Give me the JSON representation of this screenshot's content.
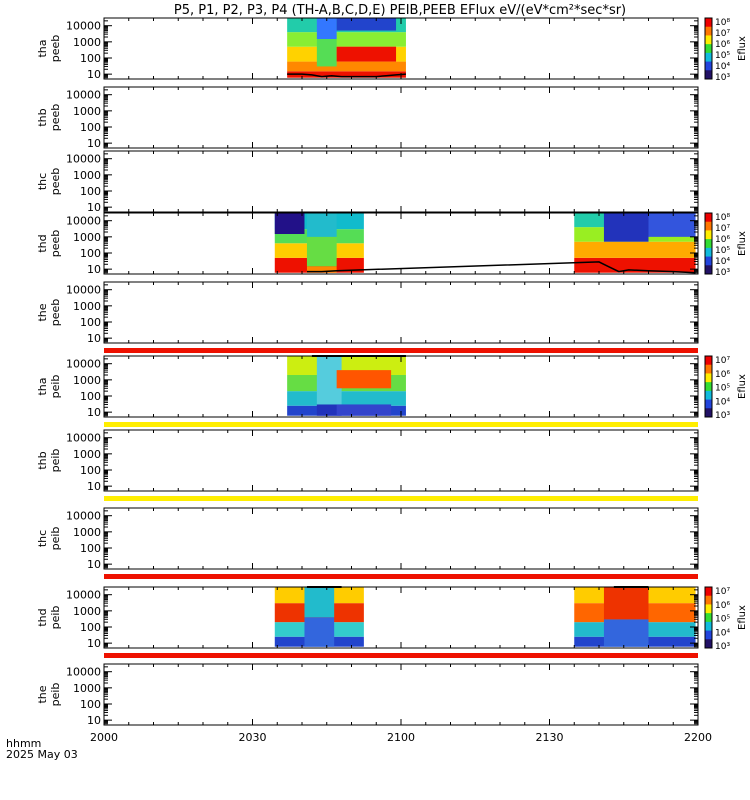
{
  "page_title": "P5, P1, P2, P3, P4 (TH-A,B,C,D,E) PEIB,PEEB EFlux eV/(eV*cm²*sec*sr)",
  "footer": {
    "line1": "hhmm",
    "line2": "2025 May 03"
  },
  "chart_data": {
    "type": "heatmap",
    "title": "P5, P1, P2, P3, P4 (TH-A,B,C,D,E) PEIB,PEEB EFlux eV/(eV*cm²*sec*sr)",
    "x_tick_labels": [
      "2000",
      "2030",
      "2100",
      "2130",
      "2200"
    ],
    "x_tick_minutes": [
      0,
      30,
      60,
      90,
      120
    ],
    "x_range_minutes": [
      0,
      120
    ],
    "y_scale": "log",
    "y_tick_labels": [
      "10",
      "100",
      "1000",
      "10000"
    ],
    "y_tick_values": [
      10,
      100,
      1000,
      10000
    ],
    "y_range": [
      5,
      30000
    ],
    "colorbar_label": "Eflux",
    "panels": [
      {
        "label_top": "tha",
        "label_bottom": "peeb",
        "colorbar_ticks": [
          "10⁸",
          "10⁷",
          "10⁶",
          "10⁵",
          "10⁴",
          "10³"
        ],
        "segments": [
          {
            "start": 37,
            "end": 61,
            "bands": [
              {
                "from": 6,
                "to": 15,
                "color": "#ee1100"
              },
              {
                "from": 15,
                "to": 60,
                "color": "#ff8800"
              },
              {
                "from": 60,
                "to": 500,
                "color": "#ffd200"
              },
              {
                "from": 500,
                "to": 4000,
                "color": "#88ee33"
              },
              {
                "from": 4000,
                "to": 30000,
                "color": "#22ccaa"
              }
            ]
          },
          {
            "start": 43,
            "end": 47,
            "bands": [
              {
                "from": 30,
                "to": 1500,
                "color": "#55dd55"
              },
              {
                "from": 1500,
                "to": 30000,
                "color": "#3377ff"
              }
            ]
          },
          {
            "start": 47,
            "end": 59,
            "bands": [
              {
                "from": 60,
                "to": 500,
                "color": "#ee1100"
              },
              {
                "from": 5000,
                "to": 30000,
                "color": "#2244cc"
              }
            ]
          }
        ],
        "line": [
          [
            37,
            10
          ],
          [
            40,
            10
          ],
          [
            42,
            9
          ],
          [
            44,
            7
          ],
          [
            46,
            8
          ],
          [
            48,
            7
          ],
          [
            50,
            7
          ],
          [
            52,
            7
          ],
          [
            55,
            7
          ],
          [
            57,
            8
          ],
          [
            59,
            9
          ],
          [
            61,
            10
          ]
        ]
      },
      {
        "label_top": "thb",
        "label_bottom": "peeb"
      },
      {
        "label_top": "thc",
        "label_bottom": "peeb"
      },
      {
        "label_top": "thd",
        "label_bottom": "peeb",
        "colorbar_ticks": [
          "10⁸",
          "10⁷",
          "10⁶",
          "10⁵",
          "10⁴",
          "10³"
        ],
        "segments": [
          {
            "start": 34.5,
            "end": 52.5,
            "bands": [
              {
                "from": 6,
                "to": 50,
                "color": "#ee1100"
              },
              {
                "from": 50,
                "to": 400,
                "color": "#ffcc00"
              },
              {
                "from": 400,
                "to": 3000,
                "color": "#55dd55"
              },
              {
                "from": 3000,
                "to": 30000,
                "color": "#11bbcc"
              }
            ]
          },
          {
            "start": 34.5,
            "end": 40.5,
            "bands": [
              {
                "from": 1500,
                "to": 30000,
                "color": "#221188"
              }
            ]
          },
          {
            "start": 41,
            "end": 47,
            "bands": [
              {
                "from": 6,
                "to": 15,
                "color": "#ff8800"
              },
              {
                "from": 15,
                "to": 1000,
                "color": "#66dd44"
              },
              {
                "from": 1000,
                "to": 30000,
                "color": "#22bbcc"
              }
            ]
          },
          {
            "start": 95,
            "end": 119.5,
            "bands": [
              {
                "from": 6,
                "to": 50,
                "color": "#ee1100"
              },
              {
                "from": 50,
                "to": 500,
                "color": "#ffaa00"
              },
              {
                "from": 500,
                "to": 4000,
                "color": "#99ee22"
              },
              {
                "from": 4000,
                "to": 30000,
                "color": "#22ccaa"
              }
            ]
          },
          {
            "start": 101,
            "end": 110,
            "bands": [
              {
                "from": 500,
                "to": 30000,
                "color": "#2233bb"
              }
            ]
          },
          {
            "start": 110,
            "end": 119.5,
            "bands": [
              {
                "from": 1000,
                "to": 30000,
                "color": "#3355dd"
              }
            ]
          }
        ],
        "line": [
          [
            41,
            7
          ],
          [
            44,
            7
          ],
          [
            47,
            8
          ],
          [
            100,
            28
          ],
          [
            102,
            14
          ],
          [
            104,
            7
          ],
          [
            106,
            9
          ],
          [
            110,
            8
          ],
          [
            115,
            7
          ],
          [
            119.5,
            6
          ]
        ]
      },
      {
        "label_top": "the",
        "label_bottom": "peeb",
        "bottom_bar": "#ee1100"
      },
      {
        "label_top": "tha",
        "label_bottom": "peib",
        "colorbar_ticks": [
          "10⁷",
          "10⁶",
          "10⁵",
          "10⁴",
          "10³"
        ],
        "top_bar": [
          42,
          61
        ],
        "bottom_bar": "#ffee00",
        "segments": [
          {
            "start": 37,
            "end": 61,
            "bands": [
              {
                "from": 6,
                "to": 25,
                "color": "#2244cc"
              },
              {
                "from": 25,
                "to": 200,
                "color": "#22bbcc"
              },
              {
                "from": 200,
                "to": 2000,
                "color": "#66dd44"
              },
              {
                "from": 2000,
                "to": 30000,
                "color": "#ccee11"
              }
            ]
          },
          {
            "start": 43,
            "end": 48,
            "bands": [
              {
                "from": 6,
                "to": 30,
                "color": "#2233bb"
              },
              {
                "from": 30,
                "to": 30000,
                "color": "#55ccdd"
              }
            ]
          },
          {
            "start": 47,
            "end": 58,
            "bands": [
              {
                "from": 300,
                "to": 4000,
                "color": "#ff5500"
              },
              {
                "from": 6,
                "to": 30,
                "color": "#3344cc"
              }
            ]
          }
        ]
      },
      {
        "label_top": "thb",
        "label_bottom": "peib",
        "bottom_bar": "#ffee00"
      },
      {
        "label_top": "thc",
        "label_bottom": "peib",
        "bottom_bar": "#ee1100"
      },
      {
        "label_top": "thd",
        "label_bottom": "peib",
        "colorbar_ticks": [
          "10⁷",
          "10⁶",
          "10⁵",
          "10⁴",
          "10³"
        ],
        "top_bar": [
          41,
          48
        ],
        "top_bar2": [
          103,
          110
        ],
        "bottom_bar": "#ee1100",
        "segments": [
          {
            "start": 34.5,
            "end": 52.5,
            "bands": [
              {
                "from": 6,
                "to": 25,
                "color": "#2244cc"
              },
              {
                "from": 25,
                "to": 200,
                "color": "#33cccc"
              },
              {
                "from": 200,
                "to": 3000,
                "color": "#ee3300"
              },
              {
                "from": 3000,
                "to": 30000,
                "color": "#ffcc00"
              }
            ]
          },
          {
            "start": 40.5,
            "end": 46.5,
            "bands": [
              {
                "from": 6,
                "to": 400,
                "color": "#3366dd"
              },
              {
                "from": 400,
                "to": 30000,
                "color": "#22bbcc"
              }
            ]
          },
          {
            "start": 95,
            "end": 119.5,
            "bands": [
              {
                "from": 6,
                "to": 25,
                "color": "#2244cc"
              },
              {
                "from": 25,
                "to": 200,
                "color": "#22bbcc"
              },
              {
                "from": 200,
                "to": 3000,
                "color": "#ff6600"
              },
              {
                "from": 3000,
                "to": 30000,
                "color": "#ffcc00"
              }
            ]
          },
          {
            "start": 101,
            "end": 110,
            "bands": [
              {
                "from": 6,
                "to": 300,
                "color": "#3366dd"
              },
              {
                "from": 300,
                "to": 30000,
                "color": "#ee3300"
              }
            ]
          }
        ]
      },
      {
        "label_top": "the",
        "label_bottom": "peib"
      }
    ]
  }
}
